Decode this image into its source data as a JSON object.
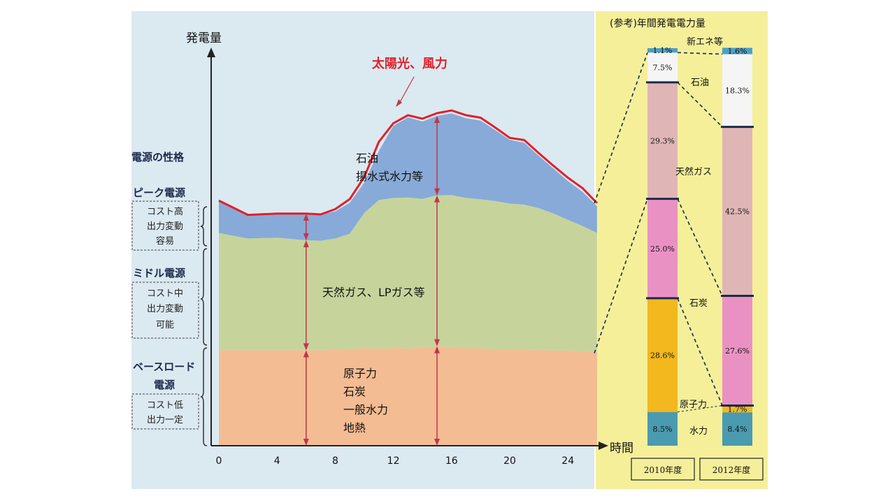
{
  "left_chart": {
    "y_axis_title": "発電量",
    "x_axis_title": "時間",
    "x_ticks": [
      "0",
      "4",
      "8",
      "12",
      "16",
      "20",
      "24"
    ],
    "power_char_title": "電源の性格",
    "categories": [
      {
        "title": "ピーク電源",
        "desc": [
          "コスト高",
          "出力変動",
          "容易"
        ]
      },
      {
        "title": "ミドル電源",
        "desc": [
          "コスト中",
          "出力変動",
          "可能"
        ]
      },
      {
        "title": "ベースロード",
        "title2": "電源",
        "desc": [
          "コスト低",
          "出力一定"
        ]
      }
    ],
    "solar_wind_label": "太陽光、風力",
    "peak_label": [
      "石油",
      "揚水式水力等"
    ],
    "middle_label": "天然ガス、LPガス等",
    "base_label": [
      "原子力",
      "石炭",
      "一般水力",
      "地熱"
    ]
  },
  "right_panel": {
    "title": "(参考)年間発電電力量",
    "fuels": [
      "新エネ等",
      "石油",
      "天然ガス",
      "石炭",
      "原子力",
      "水力"
    ],
    "years": [
      "2010年度",
      "2012年度"
    ]
  },
  "chart_data": [
    {
      "type": "area",
      "title": "",
      "xlabel": "時間",
      "ylabel": "発電量",
      "x": [
        0,
        2,
        4,
        6,
        7,
        8,
        9,
        10,
        11,
        12,
        13,
        14,
        15,
        16,
        17,
        18,
        19,
        20,
        21,
        22,
        23,
        24,
        25,
        26
      ],
      "xlim": [
        0,
        26
      ],
      "series": [
        {
          "name": "原子力",
          "values": [
            38,
            38,
            38,
            38,
            38,
            38.2,
            38.5,
            38.8,
            38.6,
            38.9,
            38.7,
            39.1,
            39.6,
            39.1,
            38.8,
            38.8,
            38.4,
            38.2,
            38.1,
            38.0,
            37.9,
            37.9,
            37.6,
            37.4
          ]
        },
        {
          "name": "天然ガス、LPガス等",
          "values": [
            84.7,
            82.5,
            82.8,
            81.8,
            81.6,
            82.5,
            84.4,
            92.7,
            97.8,
            98.7,
            98.8,
            98.3,
            99.7,
            99.8,
            98.7,
            98.1,
            97.4,
            96.4,
            96.0,
            94.6,
            92.5,
            89.9,
            87.5,
            84.7
          ]
        },
        {
          "name": "石油",
          "values": [
            97.6,
            91.9,
            92.4,
            92.4,
            92.1,
            93.3,
            96.7,
            104.8,
            117.3,
            127.4,
            130.7,
            129.1,
            131.3,
            132.3,
            130.4,
            129.4,
            125.7,
            121.8,
            120.6,
            115.4,
            110.4,
            105.4,
            101.1,
            95.4
          ]
        },
        {
          "name": "太陽光、風力",
          "values": [
            97.6,
            91.9,
            92.4,
            92.4,
            92.1,
            94.2,
            98.2,
            107.0,
            121.0,
            128.4,
            131.6,
            130.2,
            132.4,
            133.5,
            131.6,
            130.6,
            126.7,
            122.6,
            121.7,
            116.5,
            111.5,
            106.7,
            102.6,
            96.6
          ]
        }
      ]
    },
    {
      "type": "bar",
      "title": "(参考)年間発電電力量",
      "categories": [
        "2010年度",
        "2012年度"
      ],
      "series": [
        {
          "name": "水力",
          "values": [
            8.5,
            8.4
          ],
          "color": "#4a9ab0"
        },
        {
          "name": "原子力",
          "values": [
            28.6,
            1.7
          ],
          "color": "#f2b81d"
        },
        {
          "name": "石炭",
          "values": [
            25.0,
            27.6
          ],
          "color": "#ea91c4"
        },
        {
          "name": "天然ガス",
          "values": [
            29.3,
            42.5
          ],
          "color": "#e0b5b5"
        },
        {
          "name": "石油",
          "values": [
            7.5,
            18.3
          ],
          "color": "#f5f5f5"
        },
        {
          "name": "新エネ等",
          "values": [
            1.1,
            1.6
          ],
          "color": "#4aa0c8"
        }
      ],
      "value_labels": {
        "水力": [
          "8.5%",
          "8.4%"
        ],
        "原子力": [
          "28.6%",
          "1.7%"
        ],
        "石炭": [
          "25.0%",
          "27.6%"
        ],
        "天然ガス": [
          "29.3%",
          "42.5%"
        ],
        "石油": [
          "7.5%",
          "18.3%"
        ],
        "新エネ等": [
          "1.1%",
          "1.6%"
        ]
      },
      "stacked": true
    }
  ],
  "colors": {
    "bg_left": "#dbe9f1",
    "bg_right": "#f5ef9a",
    "base": "#f4bc93",
    "middle": "#c6d49c",
    "peak": "#88aad8",
    "solar_line": "#e0202a",
    "arrow": "#c0364a"
  }
}
